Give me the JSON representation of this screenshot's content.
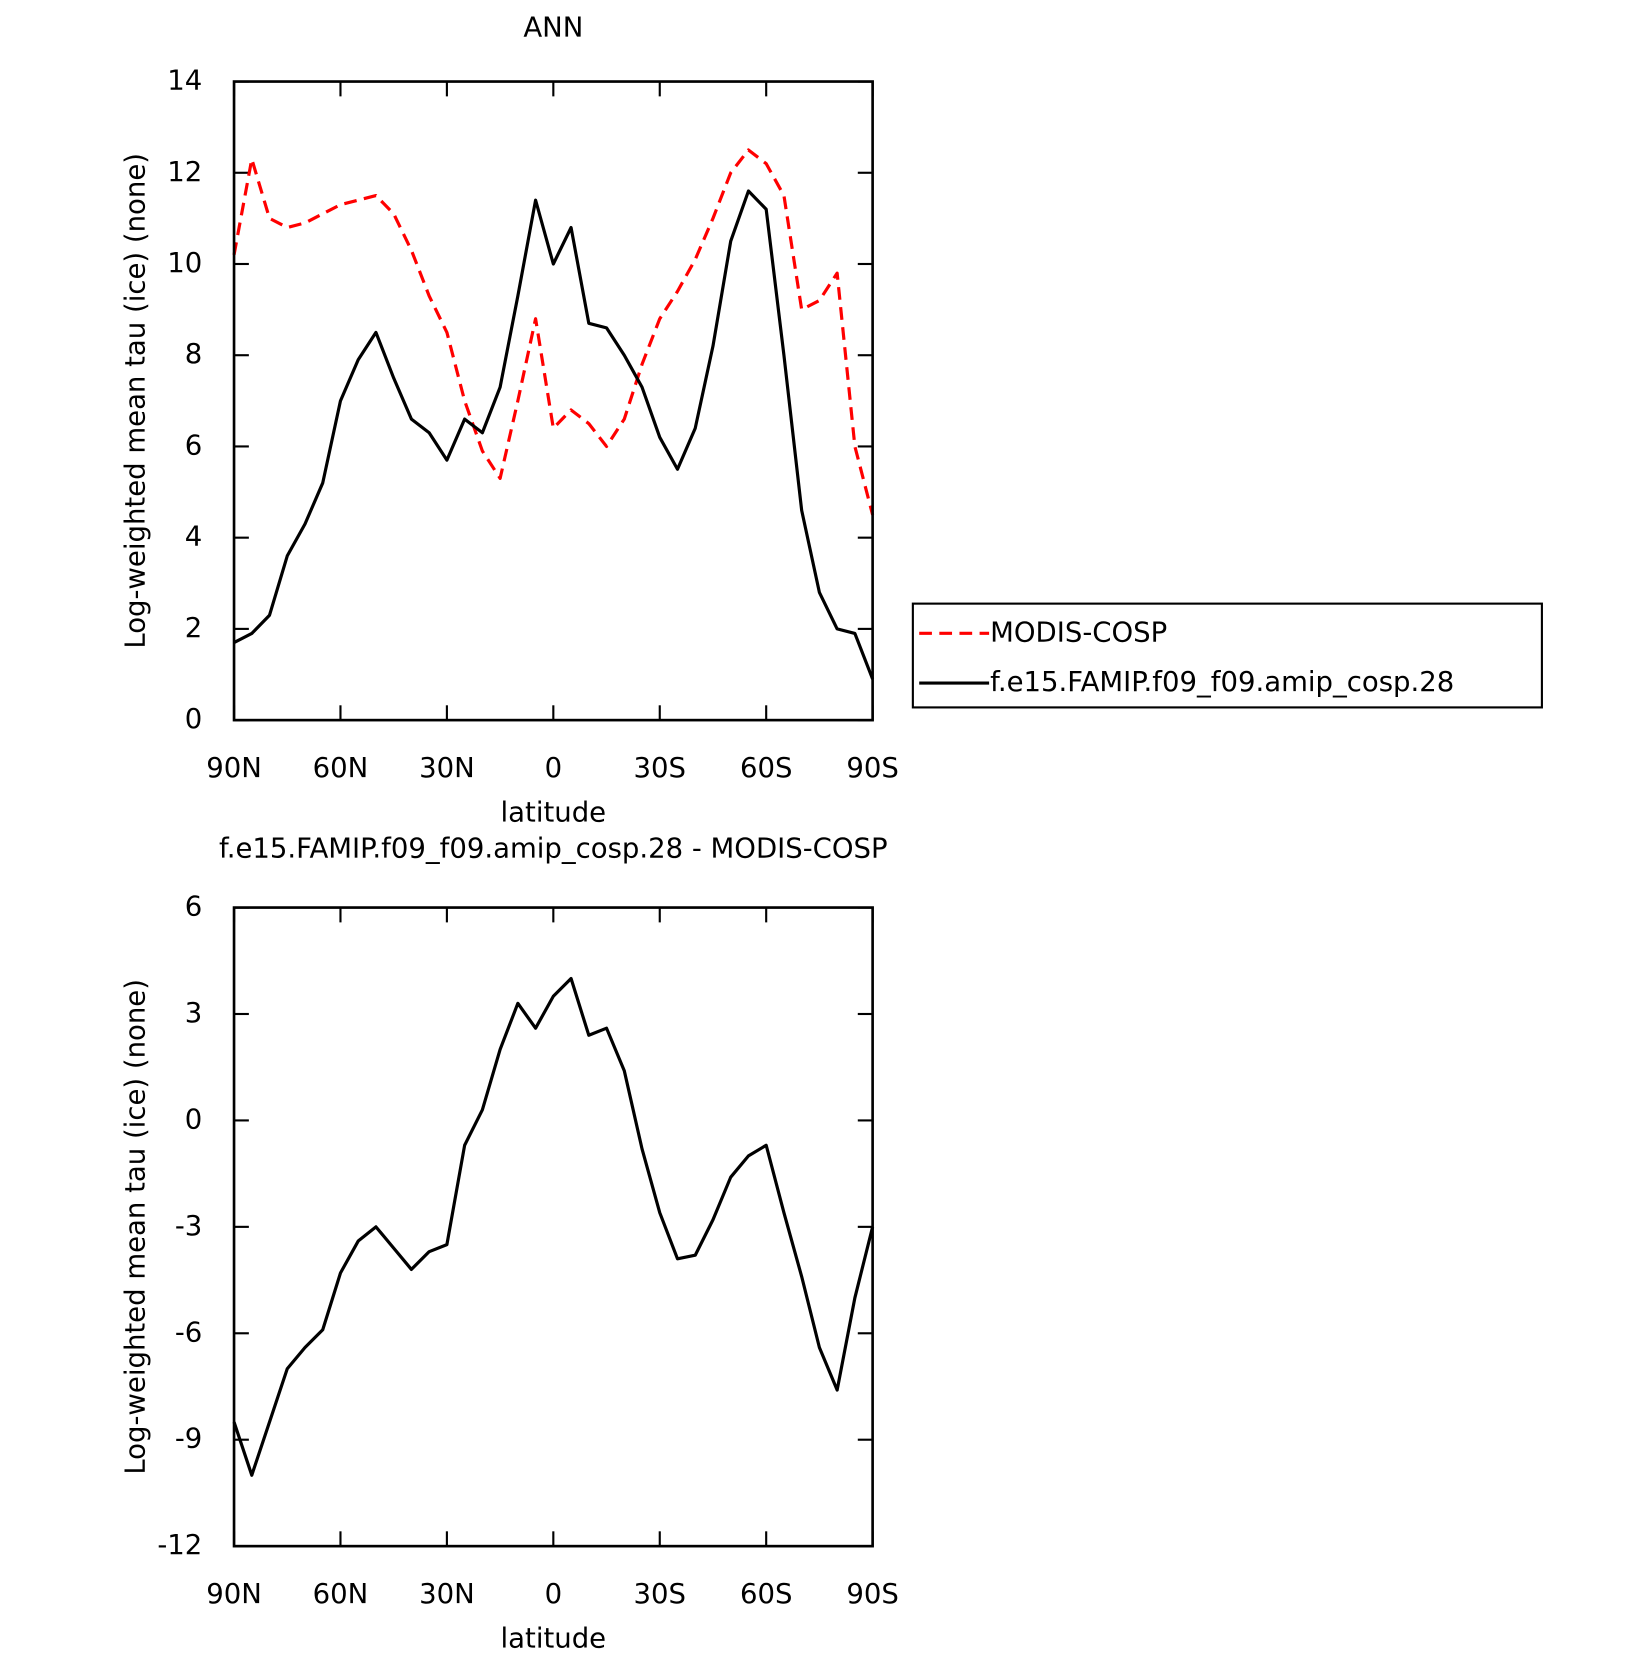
{
  "chart_data": [
    {
      "type": "line",
      "title": "ANN",
      "xlabel": "latitude",
      "ylabel": "Log-weighted mean tau (ice) (none)",
      "x": [
        90,
        85,
        80,
        75,
        70,
        65,
        60,
        55,
        50,
        45,
        40,
        35,
        30,
        25,
        20,
        15,
        10,
        5,
        0,
        -5,
        -10,
        -15,
        -20,
        -25,
        -30,
        -35,
        -40,
        -45,
        -50,
        -55,
        -60,
        -65,
        -70,
        -75,
        -80,
        -85,
        -90
      ],
      "xlim": [
        90,
        -90
      ],
      "xticks": [
        {
          "value": 90,
          "label": "90N"
        },
        {
          "value": 60,
          "label": "60N"
        },
        {
          "value": 30,
          "label": "30N"
        },
        0,
        {
          "value": -30,
          "label": "30S"
        },
        {
          "value": -60,
          "label": "60S"
        },
        {
          "value": -90,
          "label": "90S"
        }
      ],
      "ylim": [
        0,
        14
      ],
      "yticks": [
        0,
        2,
        4,
        6,
        8,
        10,
        12,
        14
      ],
      "legend": "outside right",
      "series": [
        {
          "name": "MODIS-COSP",
          "color": "#ff0000",
          "line_style": "dashed",
          "values": [
            10.2,
            12.3,
            11.0,
            10.8,
            10.9,
            11.1,
            11.3,
            11.4,
            11.5,
            11.1,
            10.3,
            9.3,
            8.5,
            7.0,
            5.9,
            5.3,
            7.0,
            8.8,
            6.4,
            6.8,
            6.5,
            6.0,
            6.6,
            7.8,
            8.8,
            9.4,
            10.1,
            11.0,
            12.0,
            12.5,
            12.2,
            11.5,
            9.0,
            9.2,
            9.8,
            6.0,
            4.5
          ]
        },
        {
          "name": "f.e15.FAMIP.f09_f09.amip_cosp.28",
          "color": "#000000",
          "line_style": "solid",
          "values": [
            1.7,
            1.9,
            2.3,
            3.6,
            4.3,
            5.2,
            7.0,
            7.9,
            8.5,
            7.5,
            6.6,
            6.3,
            5.7,
            6.6,
            6.3,
            7.3,
            9.3,
            11.4,
            10.0,
            10.8,
            8.7,
            8.6,
            8.0,
            7.3,
            6.2,
            5.5,
            6.4,
            8.2,
            10.5,
            11.6,
            11.2,
            8.0,
            4.6,
            2.8,
            2.0,
            1.9,
            0.9
          ]
        }
      ]
    },
    {
      "type": "line",
      "title": "f.e15.FAMIP.f09_f09.amip_cosp.28 - MODIS-COSP",
      "xlabel": "latitude",
      "ylabel": "Log-weighted mean tau (ice) (none)",
      "x": [
        90,
        85,
        80,
        75,
        70,
        65,
        60,
        55,
        50,
        45,
        40,
        35,
        30,
        25,
        20,
        15,
        10,
        5,
        0,
        -5,
        -10,
        -15,
        -20,
        -25,
        -30,
        -35,
        -40,
        -45,
        -50,
        -55,
        -60,
        -65,
        -70,
        -75,
        -80,
        -85,
        -90
      ],
      "xlim": [
        90,
        -90
      ],
      "xticks": [
        {
          "value": 90,
          "label": "90N"
        },
        {
          "value": 60,
          "label": "60N"
        },
        {
          "value": 30,
          "label": "30N"
        },
        0,
        {
          "value": -30,
          "label": "30S"
        },
        {
          "value": -60,
          "label": "60S"
        },
        {
          "value": -90,
          "label": "90S"
        }
      ],
      "ylim": [
        -12,
        6
      ],
      "yticks": [
        -12,
        -9,
        -6,
        -3,
        0,
        3,
        6
      ],
      "series": [
        {
          "color": "#000000",
          "line_style": "solid",
          "values": [
            -8.5,
            -10.0,
            -8.5,
            -7.0,
            -6.4,
            -5.9,
            -4.3,
            -3.4,
            -3.0,
            -3.6,
            -4.2,
            -3.7,
            -3.5,
            -0.7,
            0.3,
            2.0,
            3.3,
            2.6,
            3.5,
            4.0,
            2.4,
            2.6,
            1.4,
            -0.8,
            -2.6,
            -3.9,
            -3.8,
            -2.8,
            -1.6,
            -1.0,
            -0.7,
            -2.6,
            -4.4,
            -6.4,
            -7.6,
            -5.0,
            -3.0
          ]
        }
      ]
    }
  ]
}
